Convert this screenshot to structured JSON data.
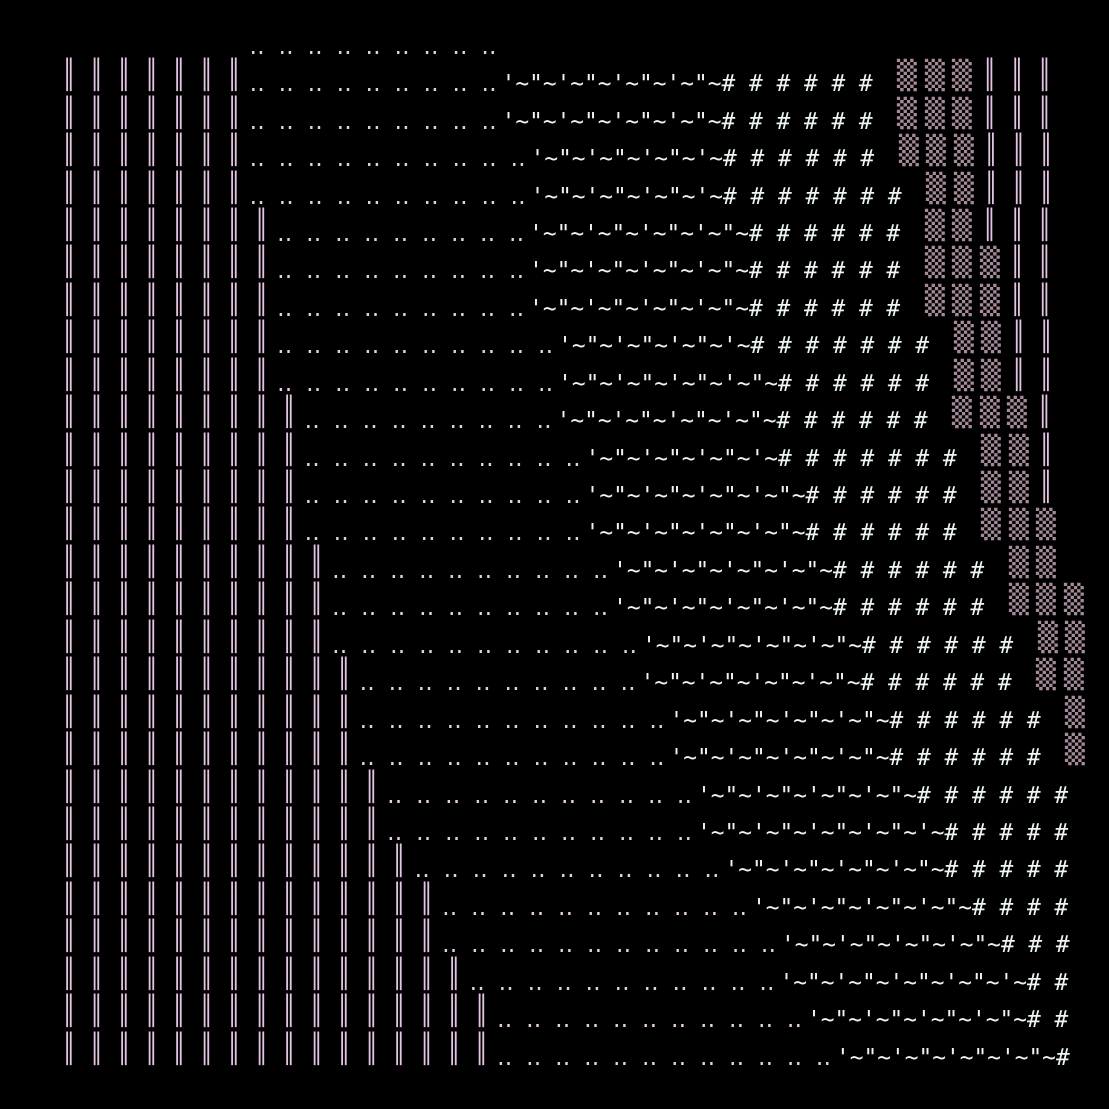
{
  "colors": {
    "background": "#000000",
    "pillar": "#e2c4e2",
    "dots": "#e6cfe6",
    "tilde": "#f2f2f2",
    "hash": "#eef6f4",
    "block": "#a58a9a"
  },
  "glyphs": {
    "pillar": "║",
    "dots": "‥",
    "tilde_pair_a": "'~",
    "tilde_pair_b": "\"~",
    "hash": "#",
    "block": "▒"
  },
  "rows": [
    {
      "blank": 7,
      "dots": 9,
      "tildes": 0,
      "hashes": 0,
      "blocks": 0,
      "pillars_right": 0,
      "pillars_left": 0
    },
    {
      "pillars_left": 7,
      "dots": 9,
      "tildes": 8,
      "hashes": 6,
      "blocks": 3,
      "pillars_right": 3
    },
    {
      "pillars_left": 7,
      "dots": 9,
      "tildes": 8,
      "hashes": 6,
      "blocks": 3,
      "pillars_right": 3
    },
    {
      "pillars_left": 7,
      "dots": 10,
      "tildes": 7,
      "hashes": 6,
      "blocks": 3,
      "pillars_right": 3
    },
    {
      "pillars_left": 7,
      "dots": 10,
      "tildes": 7,
      "hashes": 7,
      "blocks": 2,
      "pillars_right": 3
    },
    {
      "pillars_left": 8,
      "dots": 9,
      "tildes": 8,
      "hashes": 6,
      "blocks": 2,
      "pillars_right": 3
    },
    {
      "pillars_left": 8,
      "dots": 9,
      "tildes": 8,
      "hashes": 6,
      "blocks": 3,
      "pillars_right": 2
    },
    {
      "pillars_left": 8,
      "dots": 9,
      "tildes": 8,
      "hashes": 6,
      "blocks": 3,
      "pillars_right": 2
    },
    {
      "pillars_left": 8,
      "dots": 10,
      "tildes": 7,
      "hashes": 7,
      "blocks": 2,
      "pillars_right": 2
    },
    {
      "pillars_left": 8,
      "dots": 10,
      "tildes": 8,
      "hashes": 6,
      "blocks": 2,
      "pillars_right": 2
    },
    {
      "pillars_left": 9,
      "dots": 9,
      "tildes": 8,
      "hashes": 6,
      "blocks": 3,
      "pillars_right": 1
    },
    {
      "pillars_left": 9,
      "dots": 10,
      "tildes": 7,
      "hashes": 7,
      "blocks": 2,
      "pillars_right": 1
    },
    {
      "pillars_left": 9,
      "dots": 10,
      "tildes": 8,
      "hashes": 6,
      "blocks": 2,
      "pillars_right": 1
    },
    {
      "pillars_left": 9,
      "dots": 10,
      "tildes": 8,
      "hashes": 6,
      "blocks": 3,
      "pillars_right": 0
    },
    {
      "pillars_left": 10,
      "dots": 10,
      "tildes": 8,
      "hashes": 6,
      "blocks": 2,
      "pillars_right": 0
    },
    {
      "pillars_left": 10,
      "dots": 10,
      "tildes": 8,
      "hashes": 6,
      "blocks": 3,
      "pillars_right": 0
    },
    {
      "pillars_left": 10,
      "dots": 11,
      "tildes": 8,
      "hashes": 6,
      "blocks": 2,
      "pillars_right": 0
    },
    {
      "pillars_left": 11,
      "dots": 10,
      "tildes": 8,
      "hashes": 6,
      "blocks": 2,
      "pillars_right": 0
    },
    {
      "pillars_left": 11,
      "dots": 11,
      "tildes": 8,
      "hashes": 6,
      "blocks": 1,
      "pillars_right": 0
    },
    {
      "pillars_left": 11,
      "dots": 11,
      "tildes": 8,
      "hashes": 6,
      "blocks": 1,
      "pillars_right": 0
    },
    {
      "pillars_left": 12,
      "dots": 11,
      "tildes": 8,
      "hashes": 6,
      "blocks": 0,
      "pillars_right": 0
    },
    {
      "pillars_left": 12,
      "dots": 11,
      "tildes": 9,
      "hashes": 5,
      "blocks": 0,
      "pillars_right": 0
    },
    {
      "pillars_left": 13,
      "dots": 11,
      "tildes": 8,
      "hashes": 5,
      "blocks": 0,
      "pillars_right": 0
    },
    {
      "pillars_left": 14,
      "dots": 11,
      "tildes": 8,
      "hashes": 4,
      "blocks": 0,
      "pillars_right": 0
    },
    {
      "pillars_left": 14,
      "dots": 12,
      "tildes": 8,
      "hashes": 3,
      "blocks": 0,
      "pillars_right": 0
    },
    {
      "pillars_left": 15,
      "dots": 11,
      "tildes": 9,
      "hashes": 2,
      "blocks": 0,
      "pillars_right": 0
    },
    {
      "pillars_left": 16,
      "dots": 11,
      "tildes": 8,
      "hashes": 2,
      "blocks": 0,
      "pillars_right": 0
    },
    {
      "pillars_left": 16,
      "dots": 12,
      "tildes": 8,
      "hashes": 1,
      "blocks": 0,
      "pillars_right": 0
    }
  ]
}
